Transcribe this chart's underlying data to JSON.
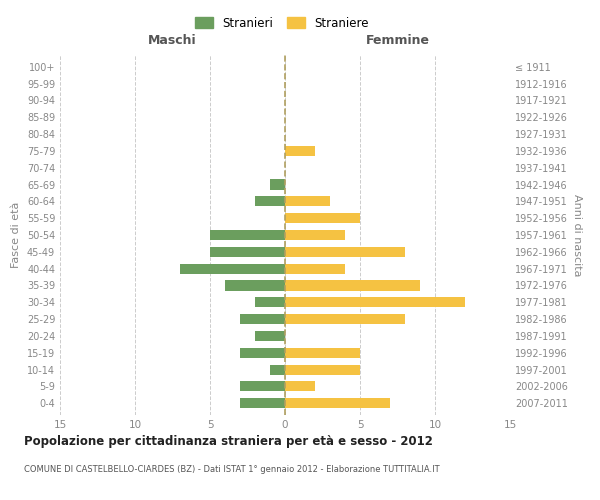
{
  "age_groups": [
    "0-4",
    "5-9",
    "10-14",
    "15-19",
    "20-24",
    "25-29",
    "30-34",
    "35-39",
    "40-44",
    "45-49",
    "50-54",
    "55-59",
    "60-64",
    "65-69",
    "70-74",
    "75-79",
    "80-84",
    "85-89",
    "90-94",
    "95-99",
    "100+"
  ],
  "birth_years": [
    "2007-2011",
    "2002-2006",
    "1997-2001",
    "1992-1996",
    "1987-1991",
    "1982-1986",
    "1977-1981",
    "1972-1976",
    "1967-1971",
    "1962-1966",
    "1957-1961",
    "1952-1956",
    "1947-1951",
    "1942-1946",
    "1937-1941",
    "1932-1936",
    "1927-1931",
    "1922-1926",
    "1917-1921",
    "1912-1916",
    "≤ 1911"
  ],
  "males": [
    3,
    3,
    1,
    3,
    2,
    3,
    2,
    4,
    7,
    5,
    5,
    0,
    2,
    1,
    0,
    0,
    0,
    0,
    0,
    0,
    0
  ],
  "females": [
    7,
    2,
    5,
    5,
    0,
    8,
    12,
    9,
    4,
    8,
    4,
    5,
    3,
    0,
    0,
    2,
    0,
    0,
    0,
    0,
    0
  ],
  "male_color": "#6b9e5e",
  "female_color": "#f5c242",
  "background_color": "#ffffff",
  "grid_color": "#cccccc",
  "title": "Popolazione per cittadinanza straniera per età e sesso - 2012",
  "subtitle": "COMUNE DI CASTELBELLO-CIARDES (BZ) - Dati ISTAT 1° gennaio 2012 - Elaborazione TUTTITALIA.IT",
  "xlabel_left": "Maschi",
  "xlabel_right": "Femmine",
  "ylabel_left": "Fasce di età",
  "ylabel_right": "Anni di nascita",
  "legend_stranieri": "Stranieri",
  "legend_straniere": "Straniere",
  "xlim": 15,
  "label_color": "#888888",
  "header_color": "#555555"
}
